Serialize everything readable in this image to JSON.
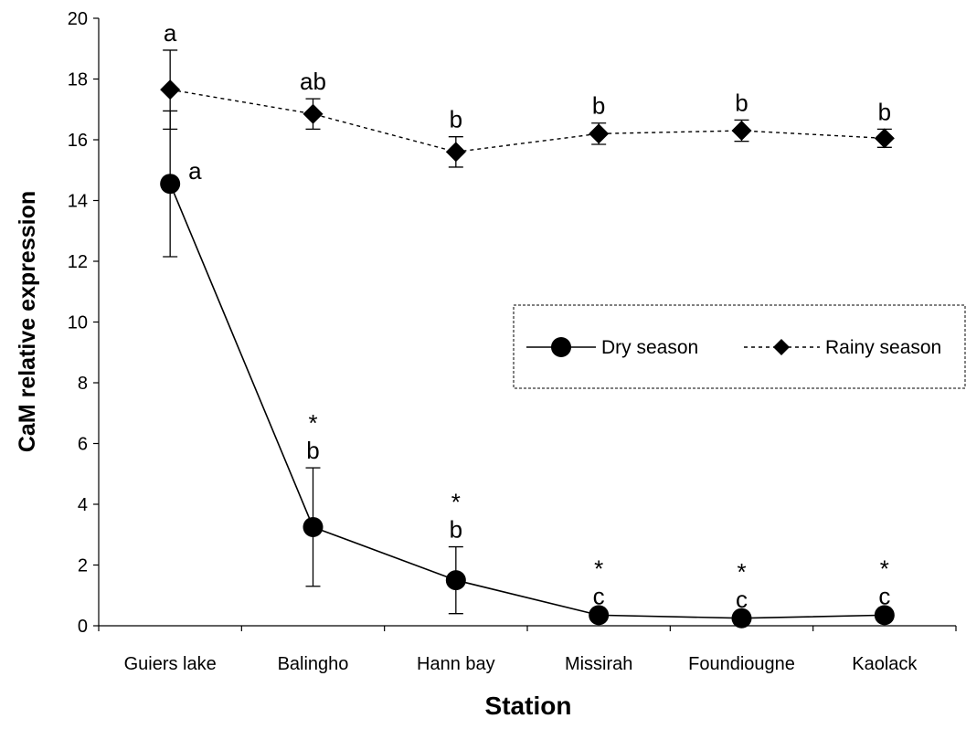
{
  "chart_data": {
    "type": "line",
    "xlabel": "Station",
    "ylabel": "CaM relative expression",
    "ylim": [
      0,
      20
    ],
    "yticks": [
      0,
      2,
      4,
      6,
      8,
      10,
      12,
      14,
      16,
      18,
      20
    ],
    "categories": [
      "Guiers lake",
      "Balingho",
      "Hann bay",
      "Missirah",
      "Foundiougne",
      "Kaolack"
    ],
    "grid": false,
    "legend_position": "center-right",
    "series": [
      {
        "name": "Dry season",
        "marker": "circle",
        "line_style": "solid",
        "values": [
          14.55,
          3.25,
          1.5,
          0.35,
          0.25,
          0.35
        ],
        "errors": [
          2.4,
          1.95,
          1.1,
          0.05,
          0.05,
          0.05
        ],
        "letters": [
          "a",
          "b",
          "b",
          "c",
          "c",
          "c"
        ],
        "asterisks": [
          "",
          "*",
          "*",
          "*",
          "*",
          "*"
        ]
      },
      {
        "name": "Rainy season",
        "marker": "diamond",
        "line_style": "dotted",
        "values": [
          17.65,
          16.85,
          15.6,
          16.2,
          16.3,
          16.05
        ],
        "errors": [
          1.3,
          0.5,
          0.5,
          0.35,
          0.35,
          0.3
        ],
        "letters": [
          "a",
          "ab",
          "b",
          "b",
          "b",
          "b"
        ],
        "asterisks": [
          "",
          "",
          "",
          "",
          "",
          ""
        ]
      }
    ]
  }
}
